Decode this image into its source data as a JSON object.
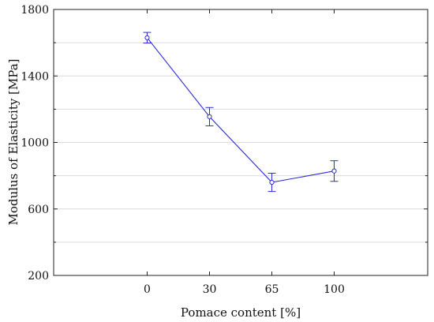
{
  "chart_data": {
    "type": "line",
    "title": "",
    "xlabel": "Pomace content [%]",
    "ylabel": "Modulus of Elasticity [MPa]",
    "categories": [
      "0",
      "30",
      "65",
      "100"
    ],
    "ylim": [
      200,
      1800
    ],
    "yticks": [
      200,
      600,
      1000,
      1400,
      1800
    ],
    "grid": true,
    "legend": "none",
    "series": [
      {
        "values": [
          1630,
          1155,
          760,
          828
        ],
        "errors": [
          32,
          55,
          55,
          62
        ],
        "color": "#2a2ad8",
        "marker": "circle-open"
      }
    ]
  }
}
